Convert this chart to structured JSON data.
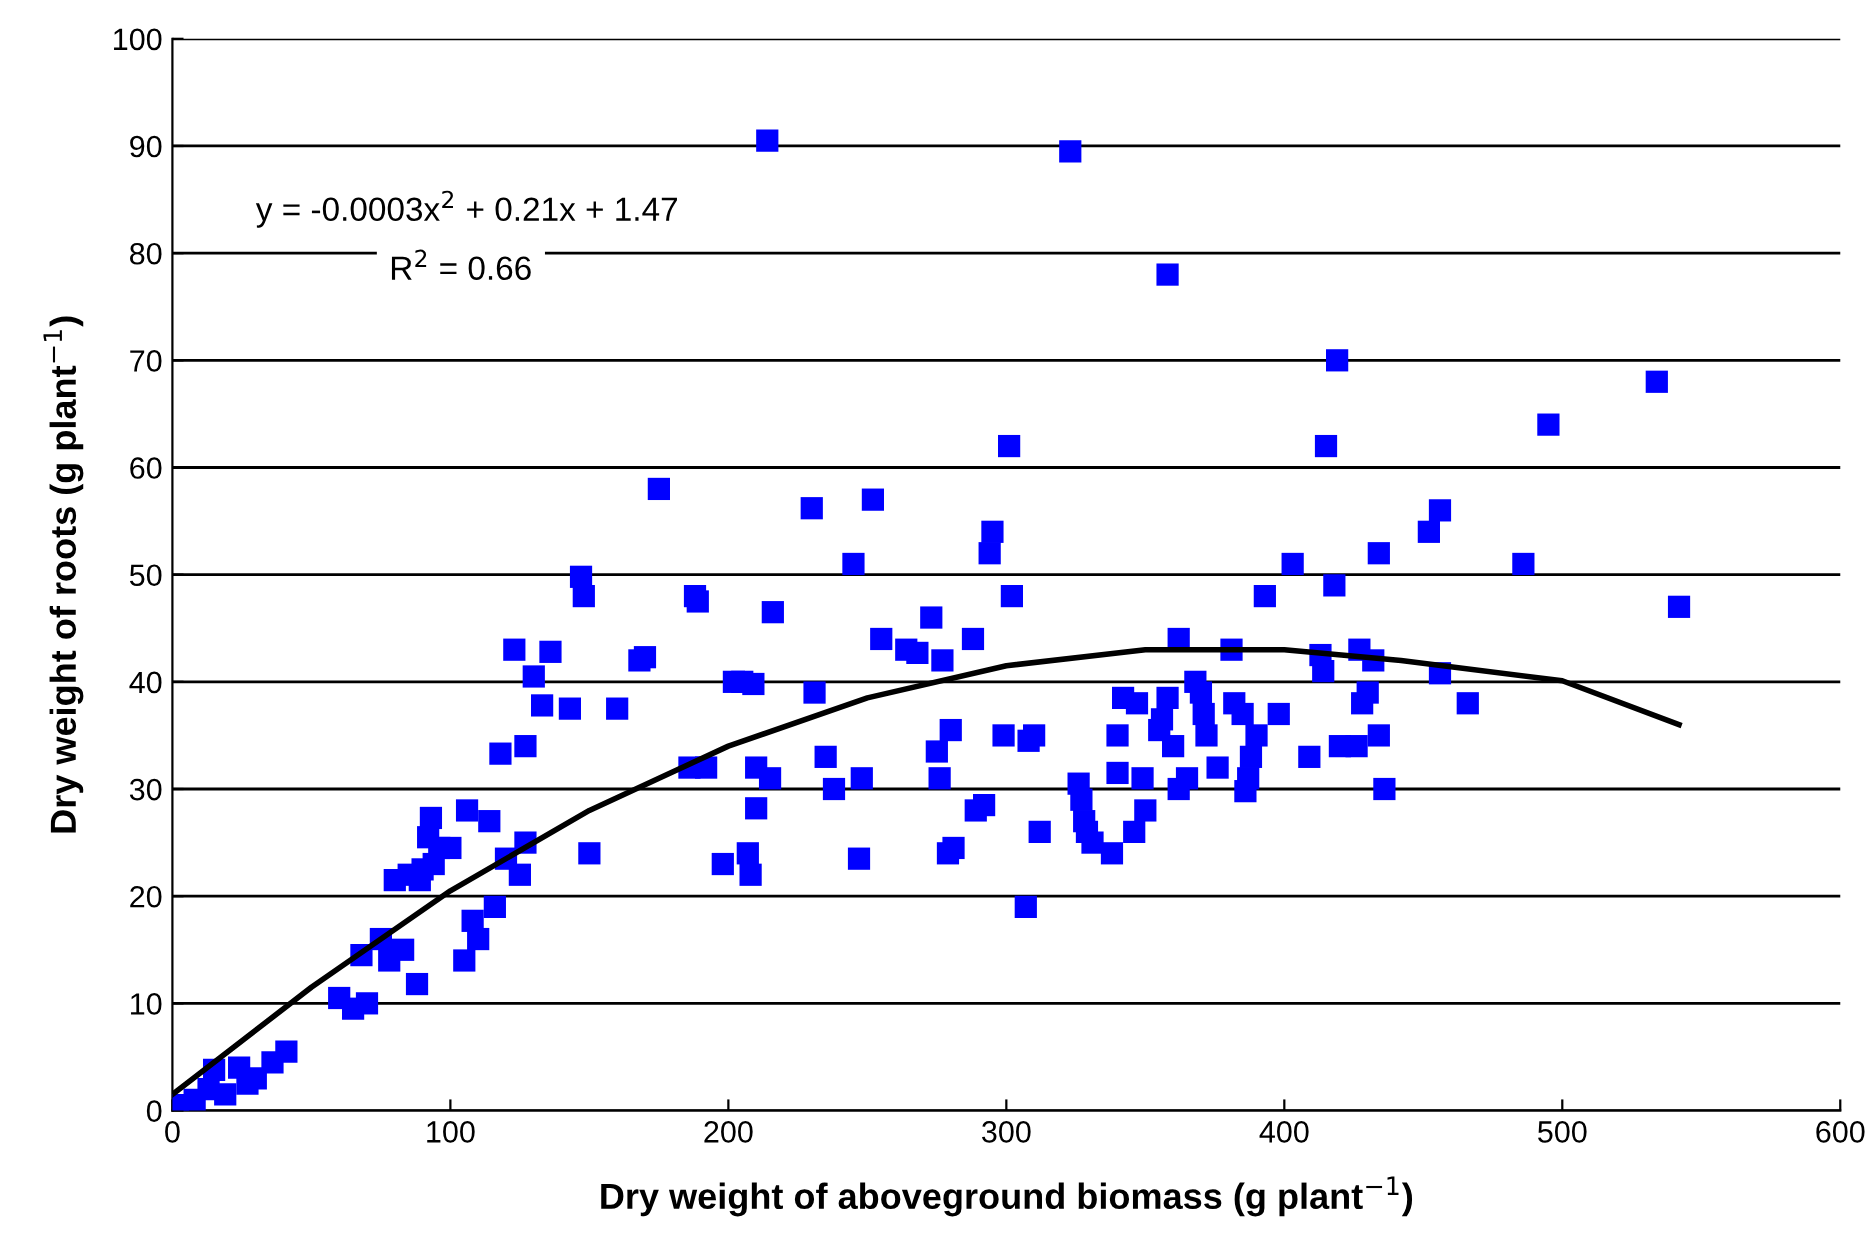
{
  "chart_data": {
    "type": "scatter",
    "xlabel": "Dry weight of aboveground biomass (g plant$^{−1}$)",
    "ylabel": "Dry weight of roots (g plant$^{−1}$)",
    "xlim": [
      0,
      600
    ],
    "xticks": [
      0,
      100,
      200,
      300,
      400,
      500,
      600
    ],
    "ylim": [
      0,
      100
    ],
    "yticks": [
      0,
      10,
      20,
      30,
      40,
      50,
      60,
      70,
      80,
      90,
      100
    ],
    "grid": "y",
    "legend": false,
    "annotations": [
      "y = -0.0003x$^{2}$ + 0.21x + 1.47",
      "R$^{2}$ = 0.66"
    ],
    "series": [
      {
        "color": "#0000ff",
        "marker": "square",
        "x": [
          2,
          8,
          13,
          19,
          24,
          30,
          36,
          41,
          15,
          27,
          60,
          65,
          68,
          70,
          75,
          78,
          80,
          83,
          85,
          88,
          89,
          90,
          92,
          93,
          94,
          96,
          100,
          105,
          106,
          108,
          110,
          114,
          116,
          118,
          120,
          123,
          125,
          127,
          127,
          130,
          133,
          136,
          143,
          147,
          148,
          150,
          160,
          168,
          170,
          175,
          186,
          188,
          189,
          192,
          198,
          202,
          205,
          207,
          208,
          209,
          210,
          210,
          215,
          216,
          214,
          230,
          231,
          235,
          238,
          245,
          247,
          248,
          252,
          255,
          264,
          268,
          273,
          275,
          276,
          277,
          279,
          280,
          281,
          288,
          289,
          292,
          294,
          295,
          299,
          301,
          302,
          307,
          308,
          310,
          312,
          323,
          326,
          327,
          328,
          329,
          331,
          338,
          340,
          342,
          340,
          346,
          347,
          349,
          350,
          355,
          356,
          358,
          358,
          360,
          362,
          362,
          365,
          368,
          370,
          371,
          372,
          376,
          381,
          382,
          385,
          386,
          387,
          388,
          390,
          393,
          398,
          403,
          409,
          413,
          414,
          415,
          418,
          419,
          420,
          426,
          427,
          428,
          430,
          432,
          434,
          434,
          436,
          452,
          456,
          456,
          466,
          486,
          495,
          534,
          542
        ],
        "values": [
          0.5,
          1,
          2,
          1.5,
          4,
          3,
          4.5,
          5.5,
          3.8,
          2.5,
          10.5,
          9.5,
          14.5,
          10,
          16,
          14,
          21.5,
          15,
          22,
          11.8,
          21.5,
          22.5,
          25.5,
          27.3,
          23,
          24.5,
          24.5,
          14,
          28,
          17.7,
          16,
          27,
          19,
          33.3,
          23.5,
          43,
          22,
          25,
          34,
          40.5,
          37.8,
          42.8,
          37.5,
          49.8,
          48,
          24,
          37.5,
          42,
          42.3,
          58,
          32,
          48,
          47.5,
          32,
          23,
          40,
          40,
          24,
          22,
          39.8,
          28.2,
          32,
          31,
          46.5,
          90.5,
          56.2,
          39,
          33,
          30,
          51,
          23.5,
          31,
          57,
          44,
          43,
          42.7,
          46,
          33.5,
          31,
          42,
          24,
          35.5,
          24.5,
          44,
          28,
          28.5,
          52,
          54,
          35,
          62,
          48,
          19,
          34.5,
          35,
          26,
          89.5,
          30.5,
          29,
          27,
          26,
          25,
          24,
          35,
          38.5,
          31.5,
          26,
          38,
          31,
          28,
          35.5,
          36.5,
          38.5,
          78,
          34,
          30,
          44,
          31,
          40,
          39,
          37,
          35,
          32,
          43,
          38,
          37,
          29.8,
          31,
          33,
          35,
          48,
          37,
          51,
          33,
          42.5,
          41,
          62,
          49,
          70,
          34,
          34,
          43,
          38,
          39,
          42,
          52,
          35,
          30,
          54,
          56,
          40.8,
          38,
          51,
          64,
          68,
          47
        ]
      },
      {
        "type": "line",
        "color": "#000000",
        "marker": "none",
        "line_style": "solid",
        "x": [
          0,
          50,
          100,
          150,
          200,
          250,
          300,
          350,
          400,
          442,
          500,
          542
        ],
        "values": [
          1.5,
          11.5,
          20.5,
          28,
          34,
          38.5,
          41.5,
          43,
          43,
          42,
          40.1,
          36
        ]
      }
    ]
  }
}
